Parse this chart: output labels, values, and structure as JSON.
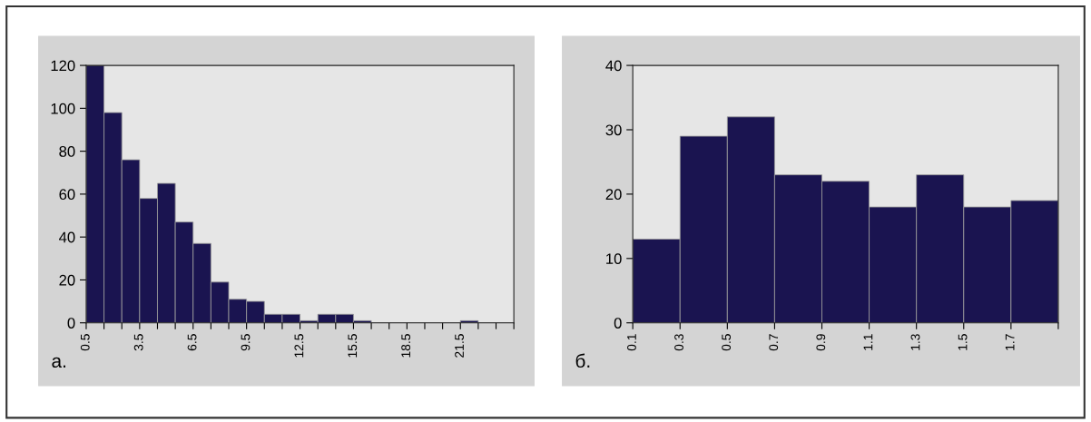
{
  "chart_data": [
    {
      "type": "histogram",
      "bins": [
        0.5,
        1.5,
        2.5,
        3.5,
        4.5,
        5.5,
        6.5,
        7.5,
        8.5,
        9.5,
        10.5,
        11.5,
        12.5,
        13.5,
        14.5,
        15.5,
        16.5,
        17.5,
        18.5,
        19.5,
        20.5,
        21.5,
        22.5,
        23.5,
        24.5
      ],
      "values": [
        120,
        98,
        76,
        58,
        65,
        47,
        37,
        19,
        11,
        10,
        4,
        4,
        1,
        4,
        4,
        1,
        0,
        0,
        0,
        0,
        0,
        1,
        0,
        0
      ],
      "color": "#1a1450",
      "xlim": [
        0.5,
        24.5
      ],
      "ylim": [
        0,
        120
      ],
      "yticks": [
        0,
        20,
        40,
        60,
        80,
        100,
        120
      ],
      "xticks": [
        0.5,
        {
          "value": 1.5,
          "label": null
        },
        {
          "value": 2.5,
          "label": null
        },
        3.5,
        {
          "value": 4.5,
          "label": null
        },
        {
          "value": 5.5,
          "label": null
        },
        6.5,
        {
          "value": 7.5,
          "label": null
        },
        {
          "value": 8.5,
          "label": null
        },
        9.5,
        {
          "value": 10.5,
          "label": null
        },
        {
          "value": 11.5,
          "label": null
        },
        12.5,
        {
          "value": 13.5,
          "label": null
        },
        {
          "value": 14.5,
          "label": null
        },
        15.5,
        {
          "value": 16.5,
          "label": null
        },
        {
          "value": 17.5,
          "label": null
        },
        18.5,
        {
          "value": 19.5,
          "label": null
        },
        {
          "value": 20.5,
          "label": null
        },
        21.5,
        {
          "value": 22.5,
          "label": null
        },
        {
          "value": 23.5,
          "label": null
        },
        {
          "value": 24.5,
          "label": null
        }
      ],
      "annotations": [
        "а."
      ]
    },
    {
      "type": "histogram",
      "bins": [
        0.1,
        0.3,
        0.5,
        0.7,
        0.9,
        1.1,
        1.3,
        1.5,
        1.7,
        1.9
      ],
      "values": [
        13,
        29,
        32,
        23,
        22,
        18,
        23,
        18,
        19
      ],
      "color": "#1a1450",
      "xlim": [
        0.1,
        1.9
      ],
      "ylim": [
        0,
        40
      ],
      "yticks": [
        0,
        10,
        20,
        30,
        40
      ],
      "xticks": [
        0.1,
        0.3,
        0.5,
        0.7,
        0.9,
        1.1,
        1.3,
        1.5,
        1.7,
        {
          "value": 1.9,
          "label": null
        }
      ],
      "annotations": [
        "б."
      ]
    }
  ]
}
